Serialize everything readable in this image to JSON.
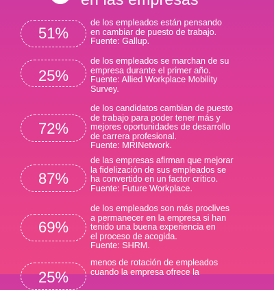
{
  "header": {
    "title": "en las empresas"
  },
  "stats": [
    {
      "value": "51%",
      "lines": [
        "de los empleados están pensando",
        "en cambiar de puesto de trabajo.",
        "Fuente: Gallup."
      ]
    },
    {
      "value": "25%",
      "lines": [
        "de los empleados se marchan de su",
        "empresa durante el primer año.",
        "Fuente: Allied Workplace Mobility",
        "Survey."
      ]
    },
    {
      "value": "72%",
      "lines": [
        "de los candidatos cambian de puesto",
        "de trabajo para poder tener más y",
        "mejores oportunidades de desarrollo",
        "de carrera profesional.",
        "Fuente: MRINetwork."
      ]
    },
    {
      "value": "87%",
      "lines": [
        "de las empresas afirman que mejorar",
        "la fidelización de sus empleados se",
        "ha convertido en un factor crítico.",
        "Fuente: Future Workplace."
      ]
    },
    {
      "value": "69%",
      "lines": [
        "de los empleados son más proclives",
        "a permanecer en la empresa si han",
        "tenido una buena experiencia en",
        "el proceso de acogida.",
        "Fuente: SHRM."
      ]
    },
    {
      "value": "25%",
      "lines": [
        "menos de rotación de empleados",
        "cuando la empresa ofrece la"
      ]
    }
  ]
}
